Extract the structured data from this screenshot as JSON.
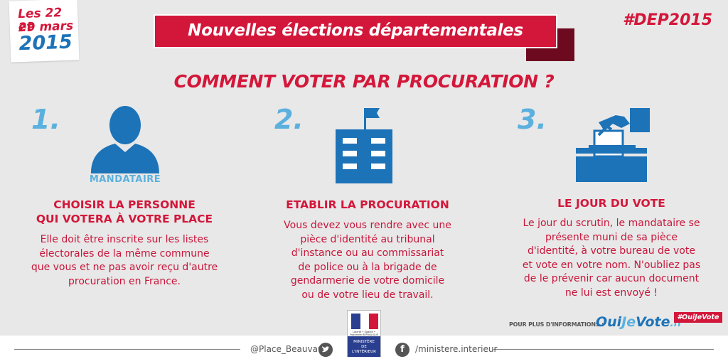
{
  "date_badge": {
    "line1": "Les 22 et",
    "line2": "29 mars",
    "line3": "2015"
  },
  "banner": {
    "title": "Nouvelles élections départementales"
  },
  "hashtag": "#DEP2015",
  "main_title": "COMMENT VOTER PAR PROCURATION ?",
  "steps": [
    {
      "number": "1.",
      "icon": "person-icon",
      "icon_label": "MANDATAIRE",
      "title_line1": "CHOISIR LA PERSONNE",
      "title_line2": "QUI VOTERA À VOTRE PLACE",
      "text_lines": [
        "Elle doit être inscrite sur les listes",
        "électorales de la même commune",
        "que vous et ne pas avoir reçu d'autre",
        "procuration en France."
      ]
    },
    {
      "number": "2.",
      "icon": "building-flag-icon",
      "title_line1": "ETABLIR LA PROCURATION",
      "text_lines": [
        "Vous devez vous rendre avec une",
        "pièce d'identité au tribunal",
        "d'instance ou au commissariat",
        "de police ou à la brigade de",
        "gendarmerie de votre domicile",
        "ou de votre lieu de travail."
      ]
    },
    {
      "number": "3.",
      "icon": "ballot-box-icon",
      "title_line1": "LE JOUR DU VOTE",
      "text_lines": [
        "Le jour du scrutin, le mandataire se",
        "présente muni de sa pièce",
        "d'identité, à votre bureau de vote",
        "et vote en votre nom. N'oubliez pas",
        "de le prévenir car aucun document",
        "ne lui est envoyé !"
      ]
    }
  ],
  "info": {
    "label": "POUR PLUS D'INFORMATIONS :",
    "site_oui": "Oui",
    "site_je": "Je",
    "site_vote": "Vote",
    "site_fr": ".fr",
    "hashtag": "#OuiJeVote"
  },
  "ministere": {
    "rf_text": "Liberté • Égalité • Fraternité RÉPUBLIQUE FRANÇAISE",
    "line1": "MINISTÈRE",
    "line2": "DE",
    "line3": "L'INTÉRIEUR"
  },
  "footer": {
    "twitter": "@Place_Beauvau",
    "facebook": "/ministere.interieur"
  },
  "colors": {
    "red": "#d3173a",
    "blue": "#1d73b8",
    "light_blue": "#5bb0de",
    "background": "#e8e8e8"
  }
}
